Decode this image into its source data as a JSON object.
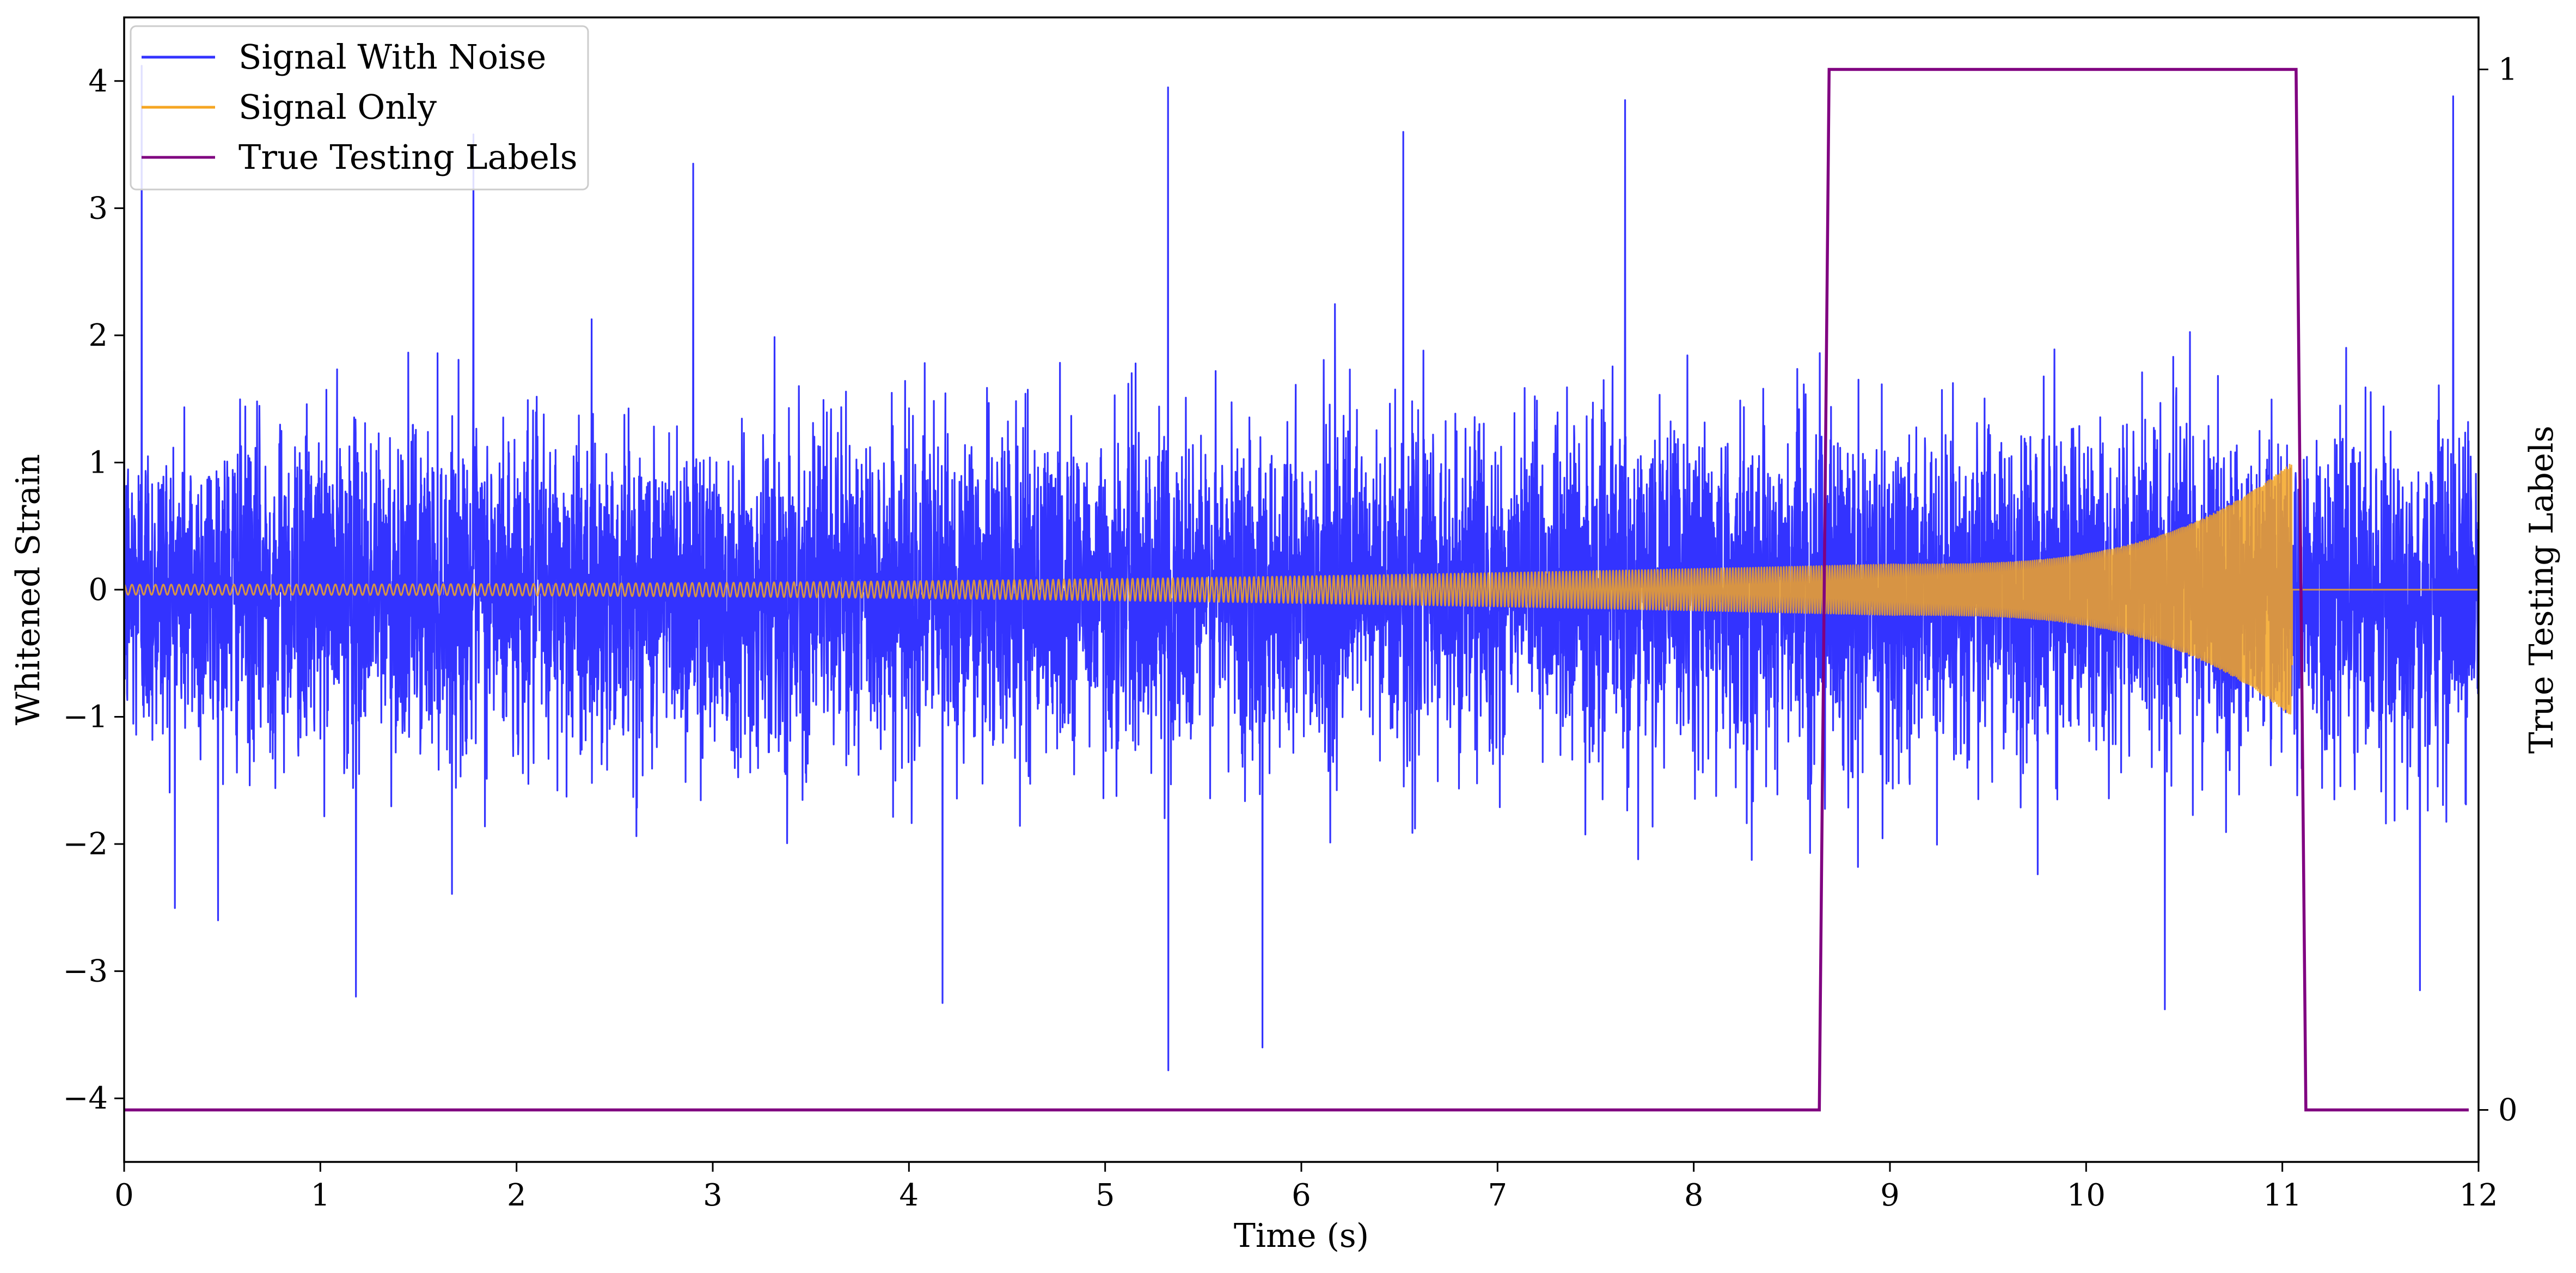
{
  "chart_data": {
    "type": "line",
    "title": "",
    "xlabel": "Time (s)",
    "ylabel": "Whitened Strain",
    "y2label": "True Testing Labels",
    "xlim": [
      0,
      12
    ],
    "ylim": [
      -4.5,
      4.5
    ],
    "y2lim": [
      -0.05,
      1.05
    ],
    "x_ticks": [
      0,
      1,
      2,
      3,
      4,
      5,
      6,
      7,
      8,
      9,
      10,
      11,
      12
    ],
    "x_tick_labels": [
      "0",
      "1",
      "2",
      "3",
      "4",
      "5",
      "6",
      "7",
      "8",
      "9",
      "10",
      "11",
      "12"
    ],
    "y_ticks": [
      -4,
      -3,
      -2,
      -1,
      0,
      1,
      2,
      3,
      4
    ],
    "y_tick_labels": [
      "−4",
      "−3",
      "−2",
      "−1",
      "0",
      "1",
      "2",
      "3",
      "4"
    ],
    "y2_ticks": [
      0,
      1
    ],
    "y2_tick_labels": [
      "0",
      "1"
    ],
    "grid": false,
    "legend": "top-left",
    "series": [
      {
        "name": "Signal With Noise",
        "color": "#3333ff",
        "axis": "left",
        "description_values": {
          "noise_std": 0.62,
          "typical_range": [
            -2.5,
            2.5
          ],
          "extremes": [
            {
              "x": 0.09,
              "y": 4.12
            },
            {
              "x": 1.18,
              "y": -3.2
            },
            {
              "x": 1.78,
              "y": 3.58
            },
            {
              "x": 2.9,
              "y": 3.35
            },
            {
              "x": 4.17,
              "y": -3.25
            },
            {
              "x": 5.32,
              "y": 3.95
            },
            {
              "x": 5.32,
              "y": -3.78
            },
            {
              "x": 5.8,
              "y": -3.6
            },
            {
              "x": 6.52,
              "y": 3.6
            },
            {
              "x": 7.65,
              "y": 3.85
            },
            {
              "x": 10.4,
              "y": -3.3
            },
            {
              "x": 11.87,
              "y": 3.88
            },
            {
              "x": 11.7,
              "y": -3.15
            }
          ]
        }
      },
      {
        "name": "Signal Only",
        "color": "#f5a623",
        "axis": "left",
        "description_values": {
          "type": "chirp",
          "start_amplitude": 0.04,
          "amplitude_at_9s": 0.2,
          "peak_amplitude": 1.0,
          "merger_time": 11.05,
          "ends_at": 11.1
        }
      },
      {
        "name": "True Testing Labels",
        "color": "#800080",
        "axis": "right",
        "x": [
          0,
          8.64,
          8.69,
          11.07,
          11.12,
          11.95
        ],
        "y": [
          0,
          0,
          1,
          1,
          0,
          0
        ]
      }
    ]
  }
}
